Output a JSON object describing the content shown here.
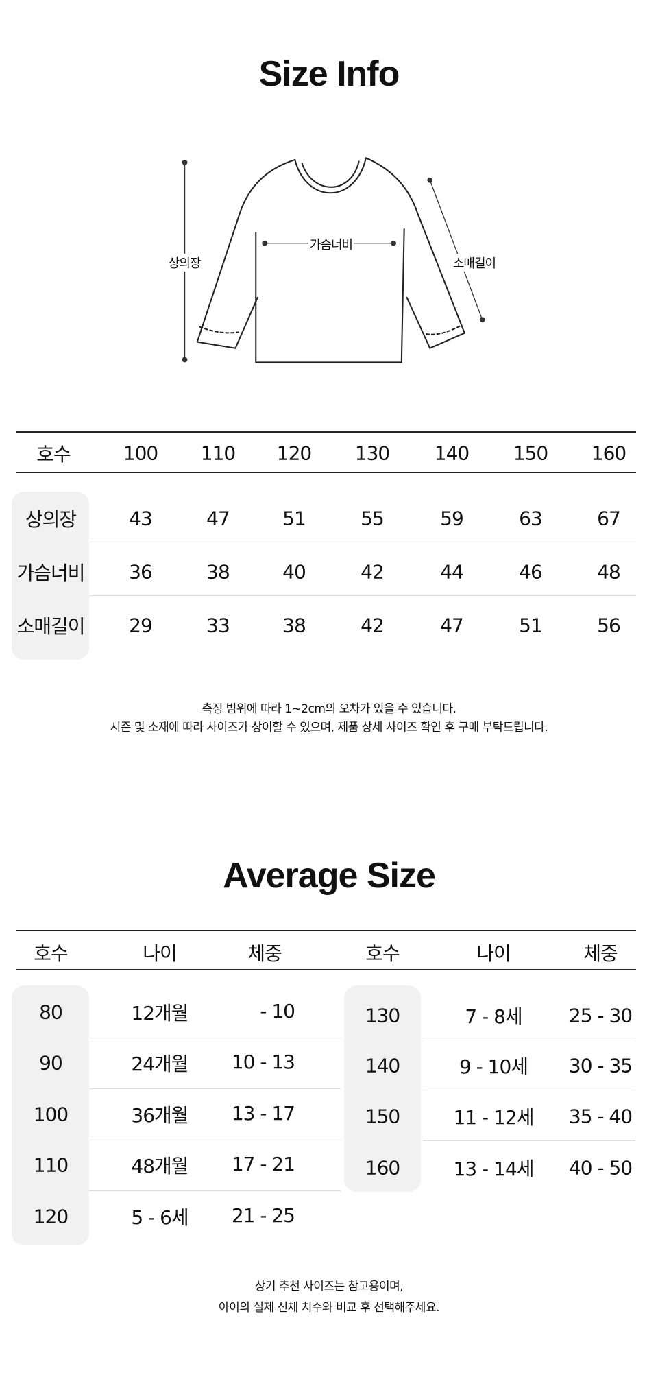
{
  "size_info": {
    "title": "Size Info",
    "diagram": {
      "length": "상의장",
      "chest": "가슴너비",
      "sleeve": "소매길이"
    },
    "table": {
      "header": [
        "호수",
        "100",
        "110",
        "120",
        "130",
        "140",
        "150",
        "160"
      ],
      "rows": [
        {
          "label": "상의장",
          "values": [
            "43",
            "47",
            "51",
            "55",
            "59",
            "63",
            "67"
          ]
        },
        {
          "label": "가슴너비",
          "values": [
            "36",
            "38",
            "40",
            "42",
            "44",
            "46",
            "48"
          ]
        },
        {
          "label": "소매길이",
          "values": [
            "29",
            "33",
            "38",
            "42",
            "47",
            "51",
            "56"
          ]
        }
      ]
    },
    "notes": [
      "측정 범위에 따라 1~2cm의 오차가 있을 수 있습니다.",
      "시즌 및 소재에 따라 사이즈가 상이할 수 있으며, 제품 상세 사이즈 확인 후 구매 부탁드립니다."
    ]
  },
  "average_size": {
    "title": "Average Size",
    "header": [
      "호수",
      "나이",
      "체중",
      "호수",
      "나이",
      "체중"
    ],
    "left_rows": [
      {
        "size": "80",
        "age": "12개월",
        "weight": "- 10"
      },
      {
        "size": "90",
        "age": "24개월",
        "weight": "10 - 13"
      },
      {
        "size": "100",
        "age": "36개월",
        "weight": "13 - 17"
      },
      {
        "size": "110",
        "age": "48개월",
        "weight": "17 - 21"
      },
      {
        "size": "120",
        "age": "5 - 6세",
        "weight": "21 - 25"
      }
    ],
    "right_rows": [
      {
        "size": "130",
        "age": "7 - 8세",
        "weight": "25 - 30"
      },
      {
        "size": "140",
        "age": "9 - 10세",
        "weight": "30 - 35"
      },
      {
        "size": "150",
        "age": "11 - 12세",
        "weight": "35 - 40"
      },
      {
        "size": "160",
        "age": "13 - 14세",
        "weight": "40 - 50"
      }
    ],
    "notes": [
      "상기 추천 사이즈는 참고용이며,",
      "아이의 실제 신체 치수와 비교 후 선택해주세요."
    ]
  }
}
